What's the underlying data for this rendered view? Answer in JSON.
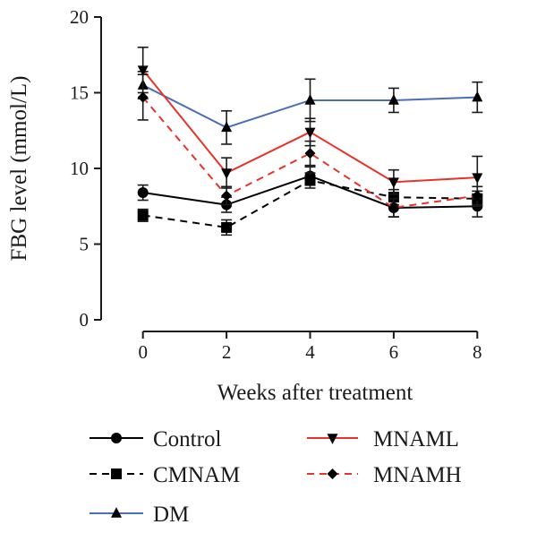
{
  "chart_data": {
    "type": "line",
    "title": "",
    "xlabel": "Weeks after treatment",
    "ylabel": "FBG level (mmol/L)",
    "x": [
      0,
      2,
      4,
      6,
      8
    ],
    "x_tick_labels": [
      "0",
      "2",
      "4",
      "6",
      "8"
    ],
    "xlim": [
      -1,
      9
    ],
    "ylim": [
      0,
      20
    ],
    "y_ticks": [
      0,
      5,
      10,
      15,
      20
    ],
    "y_tick_labels": [
      "0",
      "5",
      "10",
      "15",
      "20"
    ],
    "grid": false,
    "legend_position": "bottom",
    "series": [
      {
        "name": "Control",
        "color": "#000000",
        "dash": "solid",
        "marker": "circle",
        "values": [
          8.4,
          7.6,
          9.5,
          7.4,
          7.5
        ],
        "errors": [
          0.5,
          0.5,
          0.6,
          0.6,
          0.7
        ]
      },
      {
        "name": "CMNAM",
        "color": "#000000",
        "dash": "dashed",
        "marker": "square",
        "values": [
          6.9,
          6.1,
          9.2,
          8.1,
          8.0
        ],
        "errors": [
          0.4,
          0.5,
          0.5,
          0.5,
          0.5
        ]
      },
      {
        "name": "DM",
        "color": "#4a6fb4",
        "dash": "solid",
        "marker": "triangle-up",
        "values": [
          15.5,
          12.7,
          14.5,
          14.5,
          14.7
        ],
        "errors": [
          0.9,
          1.1,
          1.4,
          0.8,
          1.0
        ]
      },
      {
        "name": "MNAML",
        "color": "#e8322a",
        "dash": "solid",
        "marker": "triangle-down",
        "values": [
          16.5,
          9.7,
          12.4,
          9.1,
          9.4
        ],
        "errors": [
          1.5,
          1.0,
          0.9,
          0.8,
          1.4
        ]
      },
      {
        "name": "MNAMH",
        "color": "#e8322a",
        "dash": "dashed",
        "marker": "diamond",
        "values": [
          14.7,
          8.2,
          11.0,
          7.4,
          8.2
        ],
        "errors": [
          1.5,
          0.6,
          0.8,
          0.6,
          0.6
        ]
      }
    ]
  }
}
